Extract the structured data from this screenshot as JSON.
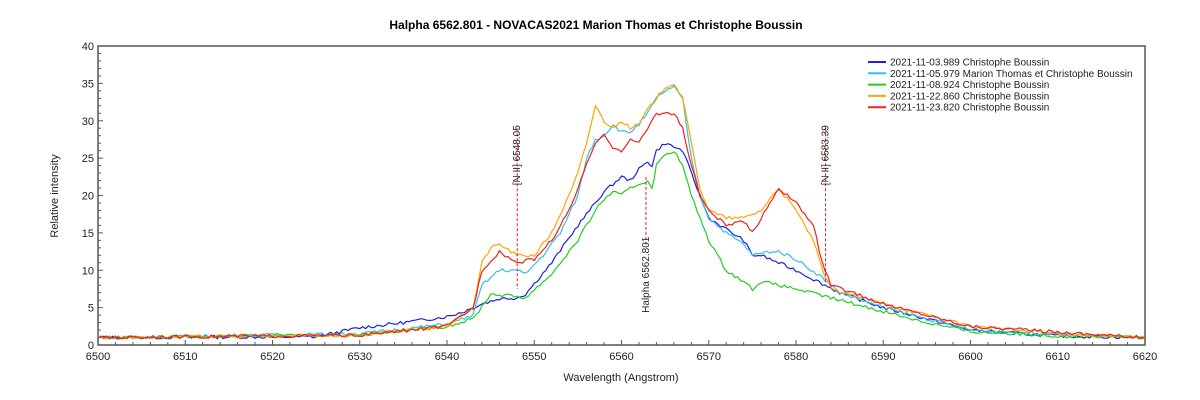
{
  "chart_data": {
    "type": "line",
    "title": "Halpha 6562.801 - NOVACAS2021   Marion Thomas et Christophe Boussin",
    "xlabel": "Wavelength (Angstrom)",
    "ylabel": "Relative intensity",
    "xlim": [
      6500,
      6620
    ],
    "ylim": [
      0,
      40
    ],
    "xticks": [
      6500,
      6510,
      6520,
      6530,
      6540,
      6550,
      6560,
      6570,
      6580,
      6590,
      6600,
      6610,
      6620
    ],
    "yticks": [
      0,
      5,
      10,
      15,
      20,
      25,
      30,
      35,
      40
    ],
    "grid": false,
    "legend_position": "top-right",
    "series": [
      {
        "name": "2021-11-03.989  Christophe Boussin",
        "color": "#2020e0",
        "points": [
          [
            6500,
            1
          ],
          [
            6525,
            1.1
          ],
          [
            6530,
            2.3
          ],
          [
            6535,
            3
          ],
          [
            6540,
            3.8
          ],
          [
            6542,
            4.5
          ],
          [
            6544,
            5.5
          ],
          [
            6546,
            6.2
          ],
          [
            6548,
            6.3
          ],
          [
            6549,
            6.8
          ],
          [
            6552,
            11
          ],
          [
            6555,
            16
          ],
          [
            6557,
            19
          ],
          [
            6558,
            20.5
          ],
          [
            6559,
            21.5
          ],
          [
            6560,
            22.5
          ],
          [
            6561,
            22
          ],
          [
            6562,
            23.5
          ],
          [
            6563,
            24.5
          ],
          [
            6563.5,
            24
          ],
          [
            6564,
            26
          ],
          [
            6565,
            27
          ],
          [
            6566,
            26.5
          ],
          [
            6567,
            26
          ],
          [
            6568,
            23
          ],
          [
            6569,
            20
          ],
          [
            6570,
            17
          ],
          [
            6572,
            15.5
          ],
          [
            6574,
            14
          ],
          [
            6575,
            12
          ],
          [
            6576,
            12
          ],
          [
            6580,
            10
          ],
          [
            6585,
            7
          ],
          [
            6590,
            5
          ],
          [
            6595,
            3.5
          ],
          [
            6600,
            2
          ],
          [
            6610,
            1.2
          ],
          [
            6620,
            1
          ]
        ]
      },
      {
        "name": "2021-11-05.979  Marion Thomas et Christophe Boussin",
        "color": "#30c0f0",
        "points": [
          [
            6500,
            1
          ],
          [
            6530,
            1.5
          ],
          [
            6540,
            2.8
          ],
          [
            6543,
            4
          ],
          [
            6544,
            8
          ],
          [
            6546,
            10
          ],
          [
            6548,
            10
          ],
          [
            6549,
            9.5
          ],
          [
            6551,
            12
          ],
          [
            6553,
            15
          ],
          [
            6555,
            20
          ],
          [
            6556,
            25
          ],
          [
            6557,
            27.5
          ],
          [
            6558,
            28
          ],
          [
            6559,
            29.5
          ],
          [
            6560,
            28.5
          ],
          [
            6561,
            28.5
          ],
          [
            6562,
            29.5
          ],
          [
            6563,
            31
          ],
          [
            6564,
            33
          ],
          [
            6565,
            34
          ],
          [
            6566,
            34.5
          ],
          [
            6567,
            33
          ],
          [
            6568,
            25
          ],
          [
            6569,
            20
          ],
          [
            6570,
            17
          ],
          [
            6572,
            15
          ],
          [
            6574,
            13.5
          ],
          [
            6575,
            12
          ],
          [
            6577,
            12.5
          ],
          [
            6578,
            12.5
          ],
          [
            6580,
            11.5
          ],
          [
            6583,
            9
          ],
          [
            6585,
            7
          ],
          [
            6590,
            5
          ],
          [
            6600,
            2
          ],
          [
            6620,
            1
          ]
        ]
      },
      {
        "name": "2021-11-08.924  Christophe Boussin",
        "color": "#20d020",
        "points": [
          [
            6500,
            1
          ],
          [
            6530,
            1.4
          ],
          [
            6540,
            2.5
          ],
          [
            6543,
            3.5
          ],
          [
            6545,
            6.8
          ],
          [
            6548,
            6.5
          ],
          [
            6549,
            6.3
          ],
          [
            6552,
            9.5
          ],
          [
            6555,
            14
          ],
          [
            6557,
            18
          ],
          [
            6558,
            19.5
          ],
          [
            6559,
            20.5
          ],
          [
            6560,
            20
          ],
          [
            6561,
            21
          ],
          [
            6562,
            21.5
          ],
          [
            6563,
            22
          ],
          [
            6563.5,
            21
          ],
          [
            6564,
            24
          ],
          [
            6565,
            25.5
          ],
          [
            6566,
            26
          ],
          [
            6567,
            24
          ],
          [
            6568,
            20
          ],
          [
            6570,
            14
          ],
          [
            6572,
            10
          ],
          [
            6574,
            8.5
          ],
          [
            6575,
            7.5
          ],
          [
            6576,
            8.5
          ],
          [
            6580,
            7.5
          ],
          [
            6585,
            6
          ],
          [
            6590,
            4.5
          ],
          [
            6595,
            3
          ],
          [
            6600,
            1.8
          ],
          [
            6610,
            1.2
          ],
          [
            6620,
            1
          ]
        ]
      },
      {
        "name": "2021-11-22.860  Christophe Boussin",
        "color": "#ffa500",
        "points": [
          [
            6500,
            1
          ],
          [
            6530,
            1.3
          ],
          [
            6540,
            2.5
          ],
          [
            6543,
            5
          ],
          [
            6544,
            11
          ],
          [
            6545,
            13
          ],
          [
            6546,
            13.5
          ],
          [
            6548,
            12
          ],
          [
            6550,
            12
          ],
          [
            6552,
            15
          ],
          [
            6554,
            20
          ],
          [
            6555,
            23
          ],
          [
            6556,
            27
          ],
          [
            6557,
            32
          ],
          [
            6558,
            30
          ],
          [
            6559,
            29
          ],
          [
            6560,
            30
          ],
          [
            6561,
            29
          ],
          [
            6562,
            29.5
          ],
          [
            6563,
            31.5
          ],
          [
            6564,
            33
          ],
          [
            6565,
            34.5
          ],
          [
            6566,
            35
          ],
          [
            6567,
            33
          ],
          [
            6568,
            27
          ],
          [
            6569,
            21
          ],
          [
            6570,
            18
          ],
          [
            6572,
            17
          ],
          [
            6574,
            17
          ],
          [
            6576,
            18
          ],
          [
            6578,
            21
          ],
          [
            6580,
            18
          ],
          [
            6582,
            14
          ],
          [
            6583,
            10
          ],
          [
            6584,
            7.5
          ],
          [
            6590,
            5.5
          ],
          [
            6600,
            2.5
          ],
          [
            6610,
            1.5
          ],
          [
            6620,
            1
          ]
        ]
      },
      {
        "name": "2021-11-23.820  Christophe Boussin",
        "color": "#f02020",
        "points": [
          [
            6500,
            1
          ],
          [
            6530,
            1.3
          ],
          [
            6540,
            2.5
          ],
          [
            6543,
            5
          ],
          [
            6544,
            10
          ],
          [
            6546,
            12.5
          ],
          [
            6548,
            11
          ],
          [
            6550,
            11.5
          ],
          [
            6552,
            14
          ],
          [
            6554,
            18
          ],
          [
            6556,
            24
          ],
          [
            6557,
            27
          ],
          [
            6558,
            28
          ],
          [
            6559,
            26.5
          ],
          [
            6560,
            26
          ],
          [
            6561,
            27.5
          ],
          [
            6562,
            27
          ],
          [
            6563,
            29
          ],
          [
            6564,
            31
          ],
          [
            6566,
            31
          ],
          [
            6567,
            29
          ],
          [
            6568,
            24
          ],
          [
            6569,
            20
          ],
          [
            6570,
            18
          ],
          [
            6572,
            16
          ],
          [
            6574,
            16.5
          ],
          [
            6575,
            15
          ],
          [
            6576,
            17
          ],
          [
            6578,
            21
          ],
          [
            6580,
            19
          ],
          [
            6582,
            16
          ],
          [
            6583,
            11
          ],
          [
            6584,
            8
          ],
          [
            6590,
            5.5
          ],
          [
            6600,
            2.5
          ],
          [
            6620,
            1
          ]
        ]
      }
    ],
    "annotations": [
      {
        "label": "[N II] 6548.05",
        "x": 6548.05,
        "y_range": [
          7.5,
          29
        ],
        "label_position": "above"
      },
      {
        "label": "Halpha 6562.801",
        "x": 6562.801,
        "y_range": [
          13.4,
          22.5
        ],
        "label_position": "below"
      },
      {
        "label": "[N II] 6583.39",
        "x": 6583.39,
        "y_range": [
          8.5,
          29
        ],
        "label_position": "above"
      }
    ],
    "annotation_color": "#e02020"
  }
}
